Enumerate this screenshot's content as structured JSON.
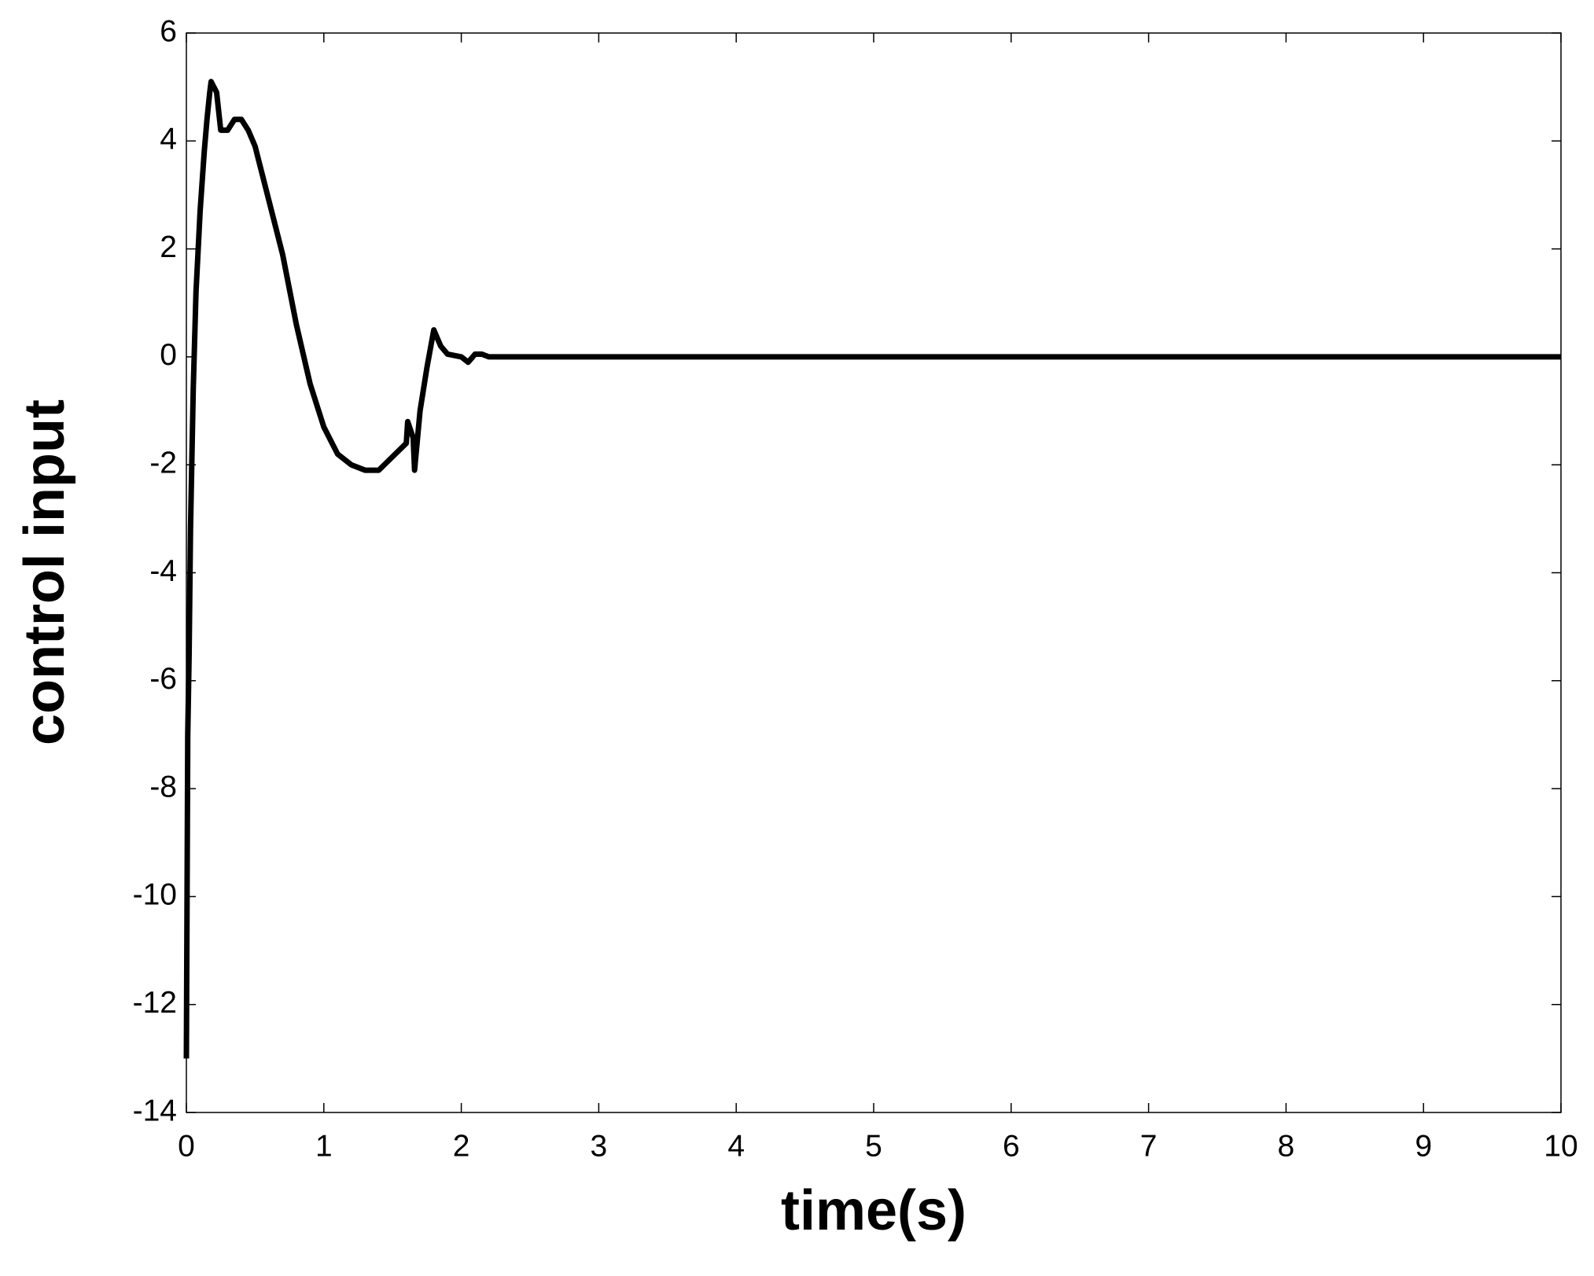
{
  "chart_data": {
    "type": "line",
    "xlabel": "time(s)",
    "ylabel": "control input",
    "xlim": [
      0,
      10
    ],
    "ylim": [
      -14,
      6
    ],
    "xticks": [
      0,
      1,
      2,
      3,
      4,
      5,
      6,
      7,
      8,
      9,
      10
    ],
    "yticks": [
      -14,
      -12,
      -10,
      -8,
      -6,
      -4,
      -2,
      0,
      2,
      4,
      6
    ],
    "grid": false,
    "series": [
      {
        "color": "#000000",
        "x": [
          0,
          0.01,
          0.02,
          0.03,
          0.05,
          0.07,
          0.1,
          0.13,
          0.15,
          0.17,
          0.18,
          0.22,
          0.25,
          0.3,
          0.35,
          0.4,
          0.45,
          0.5,
          0.55,
          0.6,
          0.7,
          0.8,
          0.9,
          1.0,
          1.1,
          1.2,
          1.3,
          1.4,
          1.6,
          1.61,
          1.65,
          1.66,
          1.7,
          1.75,
          1.8,
          1.85,
          1.9,
          2.0,
          2.05,
          2.1,
          2.15,
          2.2,
          10
        ],
        "values": [
          -13,
          -7,
          -5.5,
          -3.2,
          -0.6,
          1.2,
          2.7,
          3.8,
          4.4,
          4.9,
          5.1,
          4.9,
          4.2,
          4.2,
          4.4,
          4.4,
          4.2,
          3.9,
          3.4,
          2.9,
          1.9,
          0.6,
          -0.5,
          -1.3,
          -1.8,
          -2.0,
          -2.1,
          -2.1,
          -1.6,
          -1.2,
          -1.5,
          -2.1,
          -1.0,
          -0.2,
          0.5,
          0.2,
          0.05,
          0,
          -0.1,
          0.05,
          0.05,
          0,
          0
        ]
      }
    ]
  }
}
